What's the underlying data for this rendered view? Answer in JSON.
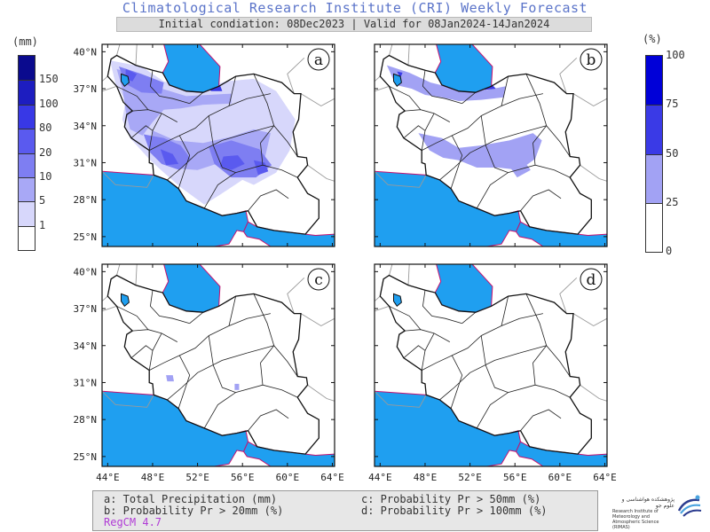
{
  "header": {
    "title": "Climatological Research Institute (CRI) Weekly Forecast",
    "subtitle": "Initial condiation: 08Dec2023 | Valid for 08Jan2024-14Jan2024"
  },
  "colorbar_precip": {
    "unit": "(mm)",
    "labels": [
      "150",
      "100",
      "80",
      "20",
      "10",
      "5",
      "1"
    ],
    "colors": [
      "#0a0a8e",
      "#1d1dc0",
      "#3838e6",
      "#5a5aef",
      "#7e7ef2",
      "#a8a8f6",
      "#d7d7fb",
      "#ffffff"
    ]
  },
  "colorbar_prob": {
    "unit": "(%)",
    "labels": [
      "100",
      "75",
      "50",
      "25",
      "0"
    ],
    "colors": [
      "#0000d8",
      "#3a3ae6",
      "#a2a2f4",
      "#ffffff"
    ]
  },
  "panels": [
    {
      "letter": "a"
    },
    {
      "letter": "b"
    },
    {
      "letter": "c"
    },
    {
      "letter": "d"
    }
  ],
  "axes": {
    "lat_labels": [
      "40°N",
      "37°N",
      "34°N",
      "31°N",
      "28°N",
      "25°N"
    ],
    "lon_labels": [
      "44°E",
      "48°E",
      "52°E",
      "56°E",
      "60°E",
      "64°E"
    ]
  },
  "legend": {
    "a": "a: Total Precipitation (mm)",
    "b": "b: Probability Pr > 20mm (%)",
    "c": "c: Probability Pr > 50mm (%)",
    "d": "d: Probability Pr > 100mm (%)",
    "model": "RegCM 4.7"
  },
  "colors": {
    "water": "#1f9ff0",
    "land": "#ffffff",
    "border_river": "#c8106e",
    "title": "#5b74c9"
  },
  "logo": {
    "text_fa": "پژوهشکده هواشناسی و علوم جو",
    "text_en": "Research Institute of Meteorology and Atmospheric Science (RIMAS)"
  }
}
